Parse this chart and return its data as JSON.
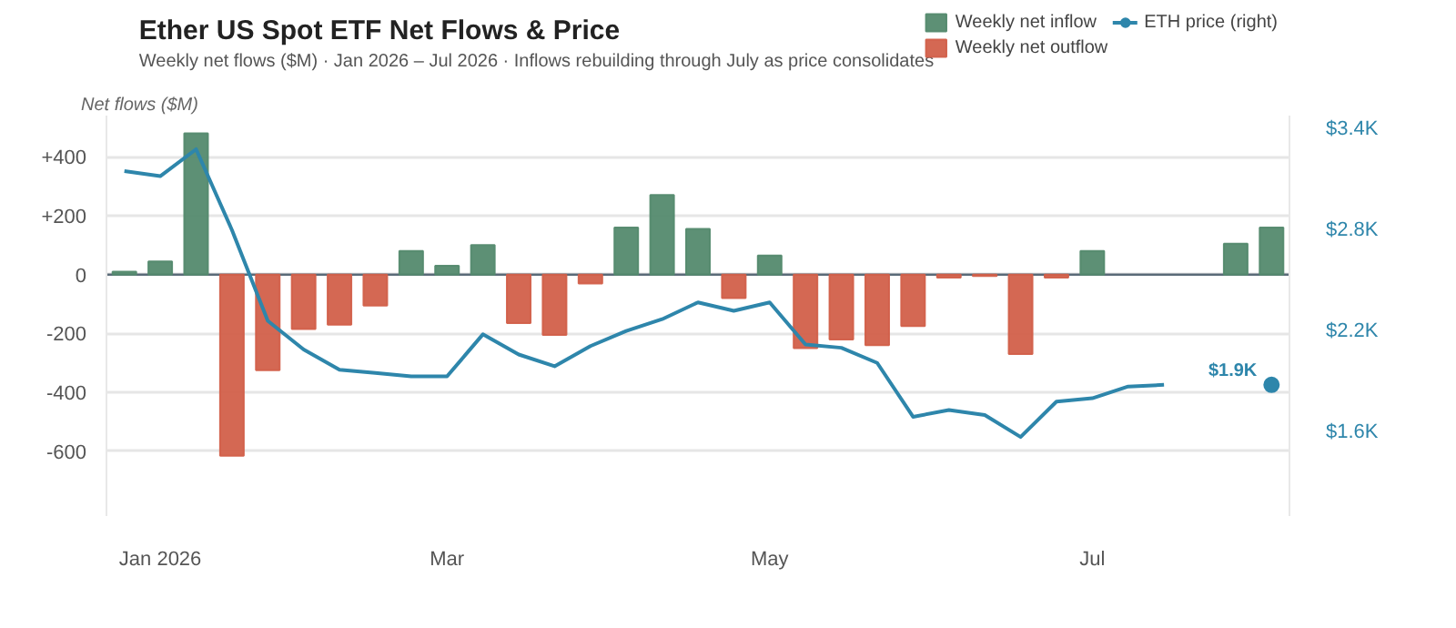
{
  "chart_data": {
    "type": "bar",
    "title": "Ether US Spot ETF Net Flows & Price",
    "subtitle": "Weekly net flows ($M) · Jan 2026 – Jul 2026 · Inflows rebuilding through July as price consolidates",
    "ylabel": "Net flows ($M)",
    "x": [
      "2025-12-29",
      "2026-01-05",
      "2026-01-12",
      "2026-01-19",
      "2026-01-26",
      "2026-02-02",
      "2026-02-09",
      "2026-02-16",
      "2026-02-23",
      "2026-03-02",
      "2026-03-09",
      "2026-03-16",
      "2026-03-23",
      "2026-03-30",
      "2026-04-06",
      "2026-04-13",
      "2026-04-20",
      "2026-04-27",
      "2026-05-04",
      "2026-05-11",
      "2026-05-18",
      "2026-05-25",
      "2026-06-01",
      "2026-06-08",
      "2026-06-15",
      "2026-06-22",
      "2026-06-29",
      "2026-07-06",
      "2026-07-13",
      "2026-07-20",
      "2026-07-27",
      "2026-08-03",
      "2026-08-10"
    ],
    "series": [
      {
        "name": "Weekly net inflow",
        "color": "#548a6e",
        "values": [
          10,
          45,
          480,
          null,
          null,
          null,
          null,
          null,
          80,
          30,
          100,
          null,
          null,
          null,
          160,
          270,
          155,
          null,
          65,
          null,
          null,
          null,
          null,
          null,
          null,
          null,
          null,
          80,
          null,
          null,
          null,
          105,
          160
        ]
      },
      {
        "name": "Weekly net outflow",
        "color": "#d2604a",
        "values": [
          null,
          null,
          null,
          -615,
          -325,
          -185,
          -170,
          -105,
          null,
          null,
          null,
          -165,
          -205,
          -30,
          null,
          null,
          null,
          -80,
          null,
          -250,
          -220,
          -240,
          -175,
          -10,
          -5,
          -270,
          -10,
          null,
          null,
          null,
          null,
          null,
          null
        ]
      },
      {
        "name": "ETH price (right)",
        "type": "line",
        "axis": "y2",
        "color": "#2e86ab",
        "values": [
          3150,
          3120,
          3280,
          2800,
          2260,
          2090,
          1970,
          1950,
          1930,
          1930,
          2180,
          2060,
          1990,
          2110,
          2200,
          2270,
          2370,
          2320,
          2370,
          2120,
          2100,
          2010,
          1690,
          1730,
          1700,
          1570,
          1780,
          1800,
          1870,
          1880,
          null,
          null,
          null
        ]
      },
      {
        "type": "scatter",
        "axis": "y2",
        "color": "#2e86ab",
        "marker": "circle",
        "x": [
          "2026-08-10"
        ],
        "values": [
          1880
        ],
        "value_labels": [
          "$1.9K"
        ]
      }
    ],
    "xlim": [
      "2025-12-25T12:00",
      "2026-08-13T12:00"
    ],
    "xticks": [
      {
        "value": "2026-01-05",
        "label": "Jan 2026"
      },
      {
        "value": "2026-03-02",
        "label": "Mar"
      },
      {
        "value": "2026-05-04",
        "label": "May"
      },
      {
        "value": "2026-07-06",
        "label": "Jul"
      }
    ],
    "ylim": [
      -820,
      540
    ],
    "yticks": [
      {
        "value": 400,
        "label": "+400"
      },
      {
        "value": 200,
        "label": "+200"
      },
      0,
      -200,
      -400,
      -600
    ],
    "y2lim": [
      1100,
      3480
    ],
    "y2ticks": [
      {
        "value": 1600,
        "label": "$1.6K"
      },
      {
        "value": 2200,
        "label": "$2.2K"
      },
      {
        "value": 2800,
        "label": "$2.8K"
      },
      {
        "value": 3400,
        "label": "$3.4K"
      }
    ],
    "grid": "y",
    "legend": "top right"
  }
}
